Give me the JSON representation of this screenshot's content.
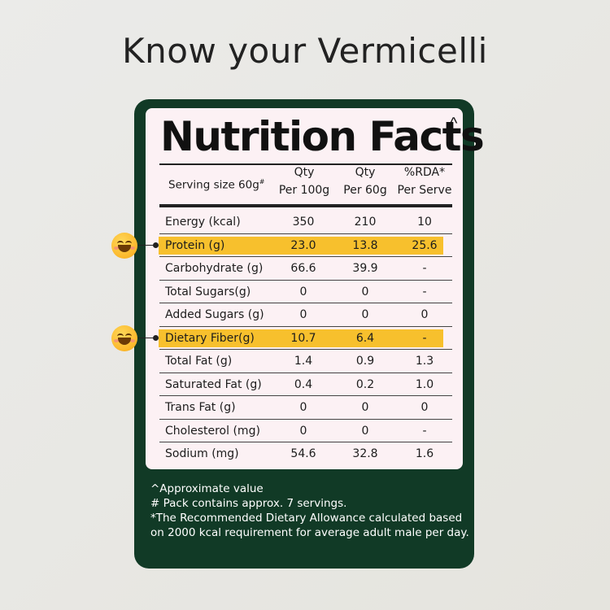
{
  "page_title": "Know your Vermicelli",
  "label": {
    "title": "Nutrition Facts",
    "title_mark": "^",
    "header": {
      "serving": "Serving size 60g",
      "serving_mark": "#",
      "col1": [
        "Qty",
        "Per 100g"
      ],
      "col2": [
        "Qty",
        "Per 60g"
      ],
      "col3": [
        "%RDA*",
        "Per Serve"
      ]
    },
    "rows": [
      {
        "name": "Energy (kcal)",
        "per100": "350",
        "per60": "210",
        "rda": "10",
        "highlight": false
      },
      {
        "name": "Protein (g)",
        "per100": "23.0",
        "per60": "13.8",
        "rda": "25.6",
        "highlight": true
      },
      {
        "name": "Carbohydrate (g)",
        "per100": "66.6",
        "per60": "39.9",
        "rda": "-",
        "highlight": false
      },
      {
        "name": "Total Sugars(g)",
        "per100": "0",
        "per60": "0",
        "rda": "-",
        "highlight": false
      },
      {
        "name": "Added Sugars (g)",
        "per100": "0",
        "per60": "0",
        "rda": "0",
        "highlight": false
      },
      {
        "name": "Dietary Fiber(g)",
        "per100": "10.7",
        "per60": "6.4",
        "rda": "-",
        "highlight": true
      },
      {
        "name": "Total Fat (g)",
        "per100": "1.4",
        "per60": "0.9",
        "rda": "1.3",
        "highlight": false
      },
      {
        "name": "Saturated Fat (g)",
        "per100": "0.4",
        "per60": "0.2",
        "rda": "1.0",
        "highlight": false
      },
      {
        "name": "Trans Fat (g)",
        "per100": "0",
        "per60": "0",
        "rda": "0",
        "highlight": false
      },
      {
        "name": "Cholesterol (mg)",
        "per100": "0",
        "per60": "0",
        "rda": "-",
        "highlight": false
      },
      {
        "name": "Sodium (mg)",
        "per100": "54.6",
        "per60": "32.8",
        "rda": "1.6",
        "highlight": false
      }
    ]
  },
  "notes": [
    "^Approximate value",
    "# Pack contains approx. 7 servings.",
    " *The Recommended Dietary Allowance calculated based",
    "on 2000 kcal requirement for average adult male per day."
  ],
  "markers": [
    "smiley-face-icon",
    "smiley-face-icon"
  ],
  "colors": {
    "card": "#113a26",
    "label_bg": "#fcf1f4",
    "highlight": "#f7c02d"
  }
}
